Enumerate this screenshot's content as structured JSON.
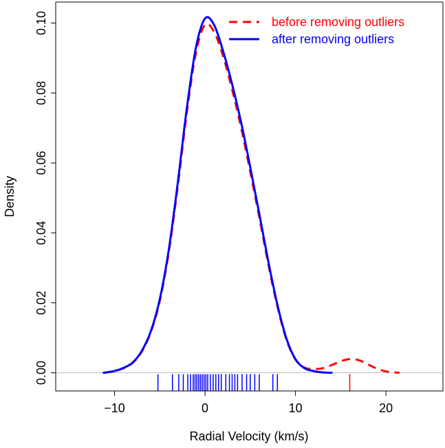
{
  "chart_data": {
    "type": "line",
    "title": "",
    "xlabel": "Radial Velocity (km/s)",
    "ylabel": "Density",
    "xlim": [
      -16.5,
      26.3
    ],
    "ylim": [
      -0.0052,
      0.106
    ],
    "x_ticks": [
      -10,
      0,
      10,
      20
    ],
    "x_tick_labels": [
      "−10",
      "0",
      "10",
      "20"
    ],
    "y_ticks": [
      0.0,
      0.02,
      0.04,
      0.06,
      0.08,
      0.1
    ],
    "y_tick_labels": [
      "0.00",
      "0.02",
      "0.04",
      "0.06",
      "0.08",
      "0.10"
    ],
    "legend_position": "top-right",
    "grid": false,
    "baseline": {
      "y": 0,
      "color": "#bebebe"
    },
    "series": [
      {
        "name": "before removing outliers",
        "color": "#ff0000",
        "style": "dashed",
        "x": [
          -11.2,
          -10,
          -9,
          -8,
          -7,
          -6,
          -5,
          -4,
          -3,
          -2,
          -1,
          0,
          1,
          2,
          3,
          4,
          5,
          6,
          7,
          8,
          9,
          10,
          11,
          12,
          13,
          14,
          15,
          16,
          17,
          18,
          19,
          20,
          21,
          21.5
        ],
        "y": [
          0.0,
          0.0005,
          0.0013,
          0.0028,
          0.006,
          0.0115,
          0.0205,
          0.0345,
          0.0535,
          0.0745,
          0.0915,
          0.0995,
          0.0975,
          0.0905,
          0.081,
          0.07,
          0.0575,
          0.0445,
          0.031,
          0.019,
          0.0095,
          0.0038,
          0.0015,
          0.0011,
          0.0013,
          0.0022,
          0.0033,
          0.0039,
          0.0036,
          0.0024,
          0.0012,
          0.0004,
          0.0001,
          0.0
        ]
      },
      {
        "name": "after removing outliers",
        "color": "#0000ff",
        "style": "solid",
        "x": [
          -11.2,
          -10,
          -9,
          -8,
          -7,
          -6,
          -5,
          -4,
          -3,
          -2,
          -1,
          0,
          1,
          2,
          3,
          4,
          5,
          6,
          7,
          8,
          9,
          10,
          11,
          12,
          13,
          14
        ],
        "y": [
          0.0,
          0.0005,
          0.0014,
          0.0029,
          0.0062,
          0.0118,
          0.021,
          0.0352,
          0.0545,
          0.0758,
          0.093,
          0.1013,
          0.0995,
          0.092,
          0.0825,
          0.0715,
          0.0588,
          0.0455,
          0.0318,
          0.0195,
          0.0098,
          0.0039,
          0.0013,
          0.0005,
          0.0001,
          0.0
        ]
      }
    ],
    "rug": [
      {
        "series": "after removing outliers",
        "color": "#0000ff",
        "x": [
          -5.2,
          -3.6,
          -2.9,
          -2.4,
          -1.9,
          -1.6,
          -1.3,
          -1.1,
          -0.9,
          -0.7,
          -0.5,
          -0.3,
          -0.1,
          0.1,
          0.3,
          0.6,
          0.9,
          1.2,
          1.5,
          1.8,
          2.3,
          2.7,
          3.0,
          3.3,
          3.6,
          4.1,
          4.6,
          5.0,
          5.5,
          6.0,
          7.5,
          8.0
        ]
      },
      {
        "series": "before removing outliers",
        "color": "#ff0000",
        "x": [
          16.0
        ]
      }
    ]
  }
}
